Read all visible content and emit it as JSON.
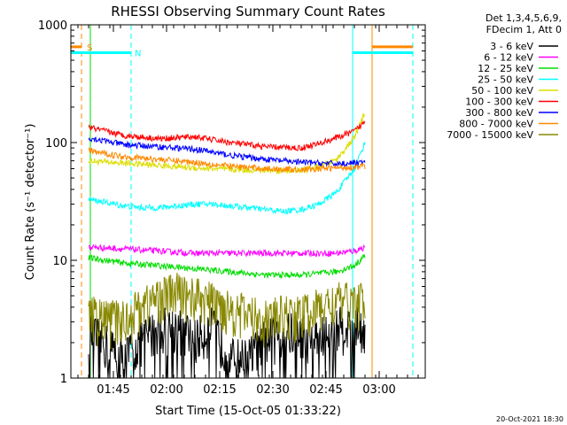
{
  "chart_data": {
    "type": "line",
    "title": "RHESSI Observing Summary Count Rates",
    "xlabel": "Start Time (15-Oct-05 01:33:22)",
    "ylabel": "Count Rate (s⁻¹ detector⁻¹)",
    "x_range_minutes": [
      0,
      100
    ],
    "ylim": [
      1,
      1000
    ],
    "y_scale": "log",
    "x_ticks": [
      {
        "t": 12,
        "label": "01:45"
      },
      {
        "t": 27,
        "label": "02:00"
      },
      {
        "t": 42,
        "label": "02:15"
      },
      {
        "t": 57,
        "label": "02:30"
      },
      {
        "t": 72,
        "label": "02:45"
      },
      {
        "t": 87,
        "label": "03:00"
      }
    ],
    "y_ticks": [
      {
        "v": 1,
        "label": "1"
      },
      {
        "v": 10,
        "label": "10"
      },
      {
        "v": 100,
        "label": "100"
      },
      {
        "v": 1000,
        "label": "1000"
      }
    ],
    "legend_header": [
      "Det 1,3,4,5,6,9,",
      "FDecim 1, Att 0"
    ],
    "legend_position": "right",
    "series": [
      {
        "name": "3 - 6 keV",
        "color": "#000000",
        "t": [
          5,
          10,
          15,
          20,
          25,
          30,
          35,
          40,
          45,
          50,
          55,
          60,
          65,
          70,
          75,
          80,
          83
        ],
        "values": [
          2.5,
          2.0,
          1.5,
          2.2,
          2.8,
          2.8,
          2.2,
          2.8,
          1.5,
          1.5,
          2.2,
          2.5,
          2.5,
          2.2,
          2.8,
          2.8,
          2.8
        ]
      },
      {
        "name": "6 - 12 keV",
        "color": "#ff00ff",
        "t": [
          5,
          15,
          25,
          35,
          45,
          55,
          65,
          75,
          80,
          83
        ],
        "values": [
          13,
          12.5,
          12,
          11.5,
          11.5,
          11.5,
          11.5,
          11.5,
          12,
          13
        ]
      },
      {
        "name": "12 - 25 keV",
        "color": "#00dd00",
        "t": [
          5,
          15,
          25,
          35,
          45,
          55,
          65,
          75,
          80,
          83
        ],
        "values": [
          10.5,
          9.5,
          9,
          8.5,
          8,
          7.5,
          7.5,
          8,
          9,
          11
        ]
      },
      {
        "name": "25 - 50 keV",
        "color": "#00ffff",
        "t": [
          5,
          10,
          15,
          20,
          25,
          30,
          35,
          40,
          45,
          50,
          55,
          60,
          65,
          70,
          75,
          80,
          83
        ],
        "values": [
          33,
          31,
          29,
          28,
          28,
          29,
          30,
          30,
          29,
          28,
          27,
          26,
          27,
          30,
          38,
          60,
          100
        ]
      },
      {
        "name": "50 - 100 keV",
        "color": "#dddd00",
        "t": [
          5,
          15,
          25,
          35,
          45,
          55,
          65,
          70,
          75,
          80,
          83
        ],
        "values": [
          70,
          67,
          64,
          61,
          59,
          58,
          58,
          62,
          72,
          110,
          180
        ]
      },
      {
        "name": "100 - 300 keV",
        "color": "#ff0000",
        "t": [
          5,
          15,
          25,
          35,
          45,
          55,
          65,
          70,
          75,
          80,
          83
        ],
        "values": [
          135,
          115,
          108,
          112,
          100,
          92,
          90,
          98,
          110,
          125,
          150
        ]
      },
      {
        "name": "300 - 800 keV",
        "color": "#0000ff",
        "t": [
          5,
          15,
          25,
          35,
          45,
          55,
          65,
          75,
          80,
          83
        ],
        "values": [
          110,
          96,
          92,
          88,
          78,
          72,
          68,
          66,
          67,
          68
        ]
      },
      {
        "name": "800 - 7000 keV",
        "color": "#ff8800",
        "t": [
          5,
          15,
          25,
          35,
          45,
          55,
          65,
          75,
          80,
          83
        ],
        "values": [
          85,
          76,
          72,
          68,
          63,
          60,
          59,
          61,
          62,
          63
        ]
      },
      {
        "name": "7000 - 15000 keV",
        "color": "#888800",
        "t": [
          5,
          10,
          15,
          20,
          25,
          30,
          35,
          40,
          45,
          50,
          55,
          60,
          65,
          70,
          75,
          80,
          83
        ],
        "values": [
          3.5,
          3.2,
          3.2,
          4.2,
          5,
          5.5,
          5,
          4.5,
          4,
          3.5,
          3.2,
          3.5,
          3.5,
          4,
          4.5,
          4.5,
          4.5
        ]
      }
    ],
    "markers": [
      {
        "label": "S",
        "color": "#ff8800",
        "value": 650,
        "segments": [
          [
            0,
            3
          ],
          [
            85,
            96.5
          ]
        ]
      },
      {
        "label": "N",
        "color": "#00ffff",
        "value": 580,
        "segments": [
          [
            0,
            17
          ],
          [
            79.5,
            96.5
          ]
        ]
      }
    ],
    "vertical_lines": [
      {
        "t": 3,
        "color": "#ff8800",
        "style": "dashed"
      },
      {
        "t": 5.5,
        "color": "#00dd00",
        "style": "solid"
      },
      {
        "t": 17,
        "color": "#00ffff",
        "style": "dashed"
      },
      {
        "t": 79.5,
        "color": "#00ffff",
        "style": "solid"
      },
      {
        "t": 85,
        "color": "#ff8800",
        "style": "solid"
      },
      {
        "t": 96.5,
        "color": "#ff8800",
        "style": "dashed"
      },
      {
        "t": 96.5,
        "color": "#00ffff",
        "style": "dashed"
      }
    ],
    "footer_date": "20-Oct-2021 18:30"
  }
}
